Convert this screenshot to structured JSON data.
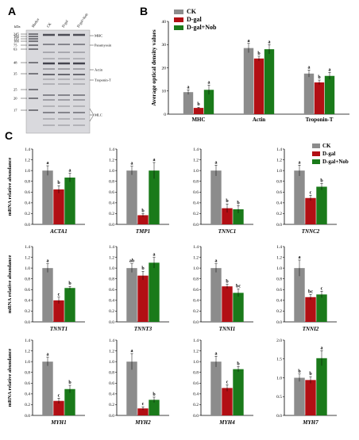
{
  "panels": {
    "a": "A",
    "b": "B",
    "c": "C"
  },
  "colors": {
    "CK": "#8c8c8c",
    "D-gal": "#b20f14",
    "D-gal+Nob": "#1a7a1a"
  },
  "gel": {
    "header": "kDa",
    "lanes": [
      "Marker",
      "CK",
      "D-gal",
      "D-gal+Nob"
    ],
    "markers": [
      "245",
      "180",
      "135",
      "100",
      "75",
      "63",
      "48",
      "35",
      "25",
      "20",
      "17"
    ],
    "bands": [
      "MHC",
      "Paramyosin",
      "Actin",
      "Troponin-T",
      "MLC"
    ]
  },
  "chart_data": [
    {
      "type": "bar",
      "panel": "B",
      "categories": [
        "MHC",
        "Actin",
        "Troponin-T"
      ],
      "ylabel": "Average optical density values",
      "ylim": [
        0,
        40
      ],
      "yticks": [
        "0",
        "10",
        "20",
        "30",
        "40"
      ],
      "legend_position": "top-left",
      "series": [
        {
          "name": "CK",
          "values": [
            9.5,
            28.5,
            17.5
          ],
          "errors": [
            1.0,
            2.0,
            1.5
          ],
          "sig": [
            "a",
            "a",
            "a"
          ]
        },
        {
          "name": "D-gal",
          "values": [
            2.7,
            24.0,
            13.7
          ],
          "errors": [
            0.3,
            1.0,
            1.0
          ],
          "sig": [
            "b",
            "b",
            "b"
          ]
        },
        {
          "name": "D-gal+Nob",
          "values": [
            10.5,
            28.0,
            16.5
          ],
          "errors": [
            2.0,
            2.0,
            1.5
          ],
          "sig": [
            "a",
            "a",
            "a"
          ]
        }
      ]
    },
    {
      "type": "bar",
      "panel": "C",
      "ylabel": "mRNA relative abundance",
      "legend_position": "top-right",
      "series_names": [
        "CK",
        "D-gal",
        "D-gal+Nob"
      ],
      "genes": [
        {
          "name": "ACTA1",
          "values": [
            1.0,
            0.65,
            0.87
          ],
          "errors": [
            0.09,
            0.07,
            0.08
          ],
          "sig": [
            "a",
            "b",
            "a"
          ],
          "ylim": [
            0,
            1.4
          ],
          "yticks": [
            "0.0",
            "0.2",
            "0.4",
            "0.6",
            "0.8",
            "1.0",
            "1.2",
            "1.4"
          ]
        },
        {
          "name": "TMP1",
          "values": [
            1.0,
            0.17,
            1.0
          ],
          "errors": [
            0.08,
            0.03,
            0.15
          ],
          "sig": [
            "a",
            "b",
            "a"
          ],
          "ylim": [
            0,
            1.4
          ],
          "yticks": [
            "0.0",
            "0.2",
            "0.4",
            "0.6",
            "0.8",
            "1.0",
            "1.2",
            "1.4"
          ]
        },
        {
          "name": "TNNC1",
          "values": [
            1.0,
            0.3,
            0.28
          ],
          "errors": [
            0.1,
            0.08,
            0.07
          ],
          "sig": [
            "a",
            "b",
            "b"
          ],
          "ylim": [
            0,
            1.4
          ],
          "yticks": [
            "0.0",
            "0.2",
            "0.4",
            "0.6",
            "0.8",
            "1.0",
            "1.2",
            "1.4"
          ]
        },
        {
          "name": "TNNC2",
          "values": [
            1.0,
            0.49,
            0.7
          ],
          "errors": [
            0.1,
            0.05,
            0.06
          ],
          "sig": [
            "a",
            "c",
            "b"
          ],
          "ylim": [
            0,
            1.4
          ],
          "yticks": [
            "0.0",
            "0.2",
            "0.4",
            "0.6",
            "0.8",
            "1.0",
            "1.2",
            "1.4"
          ]
        },
        {
          "name": "TNNT1",
          "values": [
            1.0,
            0.4,
            0.63
          ],
          "errors": [
            0.08,
            0.06,
            0.03
          ],
          "sig": [
            "a",
            "c",
            "b"
          ],
          "ylim": [
            0,
            1.4
          ],
          "yticks": [
            "0.0",
            "0.2",
            "0.4",
            "0.6",
            "0.8",
            "1.0",
            "1.2",
            "1.4"
          ]
        },
        {
          "name": "TNNT3",
          "values": [
            1.0,
            0.86,
            1.1
          ],
          "errors": [
            0.08,
            0.08,
            0.1
          ],
          "sig": [
            "ab",
            "b",
            "a"
          ],
          "ylim": [
            0,
            1.4
          ],
          "yticks": [
            "0.0",
            "0.2",
            "0.4",
            "0.6",
            "0.8",
            "1.0",
            "1.2",
            "1.4"
          ]
        },
        {
          "name": "TNNI1",
          "values": [
            1.0,
            0.66,
            0.54
          ],
          "errors": [
            0.08,
            0.04,
            0.07
          ],
          "sig": [
            "a",
            "b",
            "bc"
          ],
          "ylim": [
            0,
            1.4
          ],
          "yticks": [
            "0.0",
            "0.2",
            "0.4",
            "0.6",
            "0.8",
            "1.0",
            "1.2",
            "1.4"
          ]
        },
        {
          "name": "TNNI2",
          "values": [
            1.0,
            0.46,
            0.51
          ],
          "errors": [
            0.15,
            0.05,
            0.06
          ],
          "sig": [
            "a",
            "bc",
            "c"
          ],
          "ylim": [
            0,
            1.4
          ],
          "yticks": [
            "0.0",
            "0.2",
            "0.4",
            "0.6",
            "0.8",
            "1.0",
            "1.2",
            "1.4"
          ]
        },
        {
          "name": "MYH1",
          "values": [
            1.0,
            0.27,
            0.49
          ],
          "errors": [
            0.08,
            0.05,
            0.07
          ],
          "sig": [
            "a",
            "c",
            "b"
          ],
          "ylim": [
            0,
            1.4
          ],
          "yticks": [
            "0.0",
            "0.2",
            "0.4",
            "0.6",
            "0.8",
            "1.0",
            "1.2",
            "1.4"
          ]
        },
        {
          "name": "MYH2",
          "values": [
            1.0,
            0.13,
            0.29
          ],
          "errors": [
            0.15,
            0.03,
            0.05
          ],
          "sig": [
            "a",
            "c",
            "b"
          ],
          "ylim": [
            0,
            1.4
          ],
          "yticks": [
            "0.0",
            "0.2",
            "0.4",
            "0.6",
            "0.8",
            "1.0",
            "1.2",
            "1.4"
          ]
        },
        {
          "name": "MYH4",
          "values": [
            1.0,
            0.51,
            0.86
          ],
          "errors": [
            0.1,
            0.06,
            0.05
          ],
          "sig": [
            "a",
            "c",
            "b"
          ],
          "ylim": [
            0,
            1.4
          ],
          "yticks": [
            "0.0",
            "0.2",
            "0.4",
            "0.6",
            "0.8",
            "1.0",
            "1.2",
            "1.4"
          ]
        },
        {
          "name": "MYH7",
          "values": [
            1.0,
            0.94,
            1.52
          ],
          "errors": [
            0.1,
            0.09,
            0.2
          ],
          "sig": [
            "b",
            "b",
            "a"
          ],
          "ylim": [
            0,
            2.0
          ],
          "yticks": [
            "0.0",
            "0.5",
            "1.0",
            "1.5",
            "2.0"
          ]
        }
      ]
    }
  ]
}
